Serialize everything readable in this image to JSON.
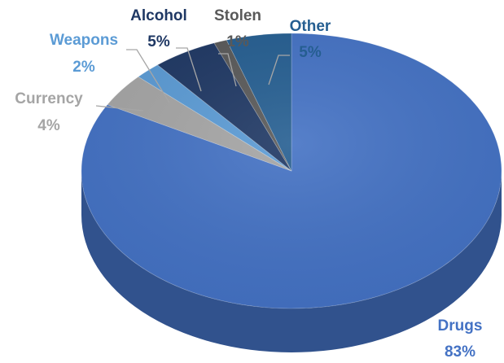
{
  "chart_data": {
    "type": "pie",
    "title": "",
    "slices": [
      {
        "label": "Drugs",
        "pct_text": "83%",
        "value": 83,
        "color": "#4472C4",
        "label_color": "#4472C4"
      },
      {
        "label": "Currency",
        "pct_text": "4%",
        "value": 4,
        "color": "#A5A5A5",
        "label_color": "#A5A5A5"
      },
      {
        "label": "Weapons",
        "pct_text": "2%",
        "value": 2,
        "color": "#5B9BD5",
        "label_color": "#5B9BD5"
      },
      {
        "label": "Alcohol",
        "pct_text": "5%",
        "value": 5,
        "color": "#1F3864",
        "label_color": "#1F3864"
      },
      {
        "label": "Stolen",
        "pct_text": "1%",
        "value": 1,
        "color": "#595959",
        "label_color": "#595959"
      },
      {
        "label": "Other",
        "pct_text": "5%",
        "value": 5,
        "color": "#255E91",
        "label_color": "#255E91"
      }
    ]
  }
}
